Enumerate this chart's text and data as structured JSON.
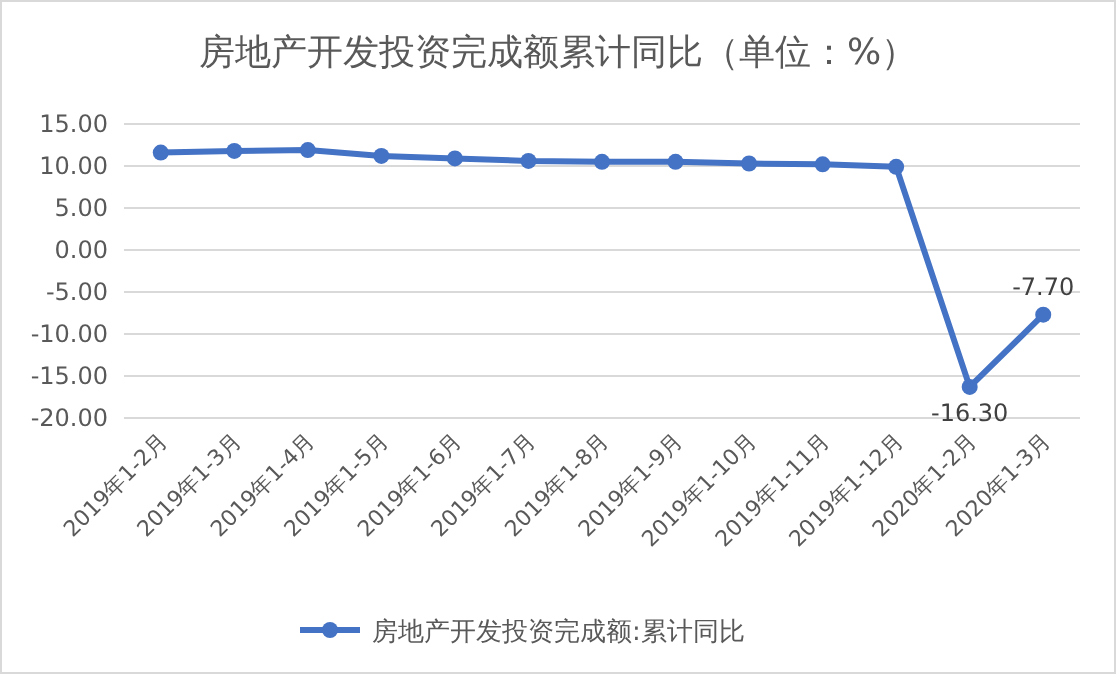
{
  "chart_data": {
    "type": "line",
    "title": "房地产开发投资完成额累计同比（单位：%）",
    "categories": [
      "2019年1-2月",
      "2019年1-3月",
      "2019年1-4月",
      "2019年1-5月",
      "2019年1-6月",
      "2019年1-7月",
      "2019年1-8月",
      "2019年1-9月",
      "2019年1-10月",
      "2019年1-11月",
      "2019年1-12月",
      "2020年1-2月",
      "2020年1-3月"
    ],
    "series": [
      {
        "name": "房地产开发投资完成额:累计同比",
        "color": "#4472c4",
        "values": [
          11.6,
          11.8,
          11.9,
          11.2,
          10.9,
          10.6,
          10.5,
          10.5,
          10.3,
          10.2,
          9.9,
          -16.3,
          -7.7
        ],
        "value_labels": [
          null,
          null,
          null,
          null,
          null,
          null,
          null,
          null,
          null,
          null,
          null,
          "-16.30",
          "-7.70"
        ]
      }
    ],
    "ylim": [
      -20,
      15
    ],
    "yticks": [
      {
        "value": -20,
        "label": "-20.00"
      },
      {
        "value": -15,
        "label": "-15.00"
      },
      {
        "value": -10,
        "label": "-10.00"
      },
      {
        "value": -5,
        "label": "-5.00"
      },
      {
        "value": 0,
        "label": "0.00"
      },
      {
        "value": 5,
        "label": "5.00"
      },
      {
        "value": 10,
        "label": "10.00"
      },
      {
        "value": 15,
        "label": "15.00"
      }
    ],
    "grid": "y",
    "legend": "bottom",
    "marker": "circle",
    "line_style": "solid"
  }
}
